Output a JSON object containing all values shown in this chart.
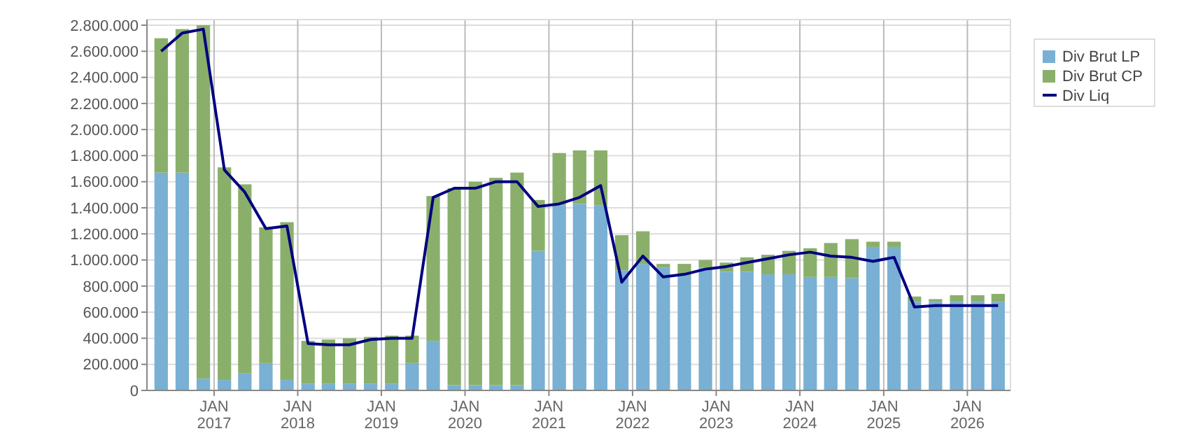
{
  "chart_data": {
    "type": "bar",
    "stacked": true,
    "grid": true,
    "legend": "right",
    "x": [
      "2016-05-15",
      "2016-08-15",
      "2016-11-15",
      "2017-02-15",
      "2017-05-15",
      "2017-08-15",
      "2017-11-15",
      "2018-02-15",
      "2018-05-15",
      "2018-08-15",
      "2018-11-15",
      "2019-02-15",
      "2019-05-15",
      "2019-08-15",
      "2019-11-15",
      "2020-02-15",
      "2020-05-15",
      "2020-08-15",
      "2020-11-15",
      "2021-02-15",
      "2021-05-15",
      "2021-08-15",
      "2021-11-15",
      "2022-02-15",
      "2022-05-15",
      "2022-08-15",
      "2022-11-15",
      "2023-02-15",
      "2023-05-15",
      "2023-08-15",
      "2023-11-15",
      "2024-02-15",
      "2024-05-15",
      "2024-08-15",
      "2024-11-15",
      "2025-02-15",
      "2025-05-15",
      "2025-08-15",
      "2025-11-15",
      "2026-02-15",
      "2026-05-15"
    ],
    "xlim": [
      "2016-03-14",
      "2026-07-08"
    ],
    "xticks": [
      {
        "value": "2017-01-01",
        "label": "JAN 2017"
      },
      {
        "value": "2018-01-01",
        "label": "JAN 2018"
      },
      {
        "value": "2019-01-01",
        "label": "JAN 2019"
      },
      {
        "value": "2020-01-01",
        "label": "JAN 2020"
      },
      {
        "value": "2021-01-01",
        "label": "JAN 2021"
      },
      {
        "value": "2022-01-01",
        "label": "JAN 2022"
      },
      {
        "value": "2023-01-01",
        "label": "JAN 2023"
      },
      {
        "value": "2024-01-01",
        "label": "JAN 2024"
      },
      {
        "value": "2025-01-01",
        "label": "JAN 2025"
      },
      {
        "value": "2026-01-01",
        "label": "JAN 2026"
      }
    ],
    "ylim": [
      0,
      2800000
    ],
    "yticks": [
      0,
      {
        "value": 200000,
        "label": "200.000"
      },
      {
        "value": 400000,
        "label": "400.000"
      },
      {
        "value": 600000,
        "label": "600.000"
      },
      {
        "value": 800000,
        "label": "800.000"
      },
      {
        "value": 1000000,
        "label": "1.000.000"
      },
      {
        "value": 1200000,
        "label": "1.200.000"
      },
      {
        "value": 1400000,
        "label": "1.400.000"
      },
      {
        "value": 1600000,
        "label": "1.600.000"
      },
      {
        "value": 1800000,
        "label": "1.800.000"
      },
      {
        "value": 2000000,
        "label": "2.000.000"
      },
      {
        "value": 2200000,
        "label": "2.200.000"
      },
      {
        "value": 2400000,
        "label": "2.400.000"
      },
      {
        "value": 2600000,
        "label": "2.600.000"
      },
      {
        "value": 2800000,
        "label": "2.800.000"
      }
    ],
    "series": [
      {
        "name": "Div Brut LP",
        "color": "#79b0d3",
        "values": [
          1670000,
          1670000,
          90000,
          80000,
          130000,
          210000,
          80000,
          50000,
          50000,
          50000,
          50000,
          50000,
          210000,
          380000,
          40000,
          40000,
          40000,
          40000,
          1070000,
          1420000,
          1430000,
          1420000,
          920000,
          970000,
          940000,
          880000,
          940000,
          910000,
          910000,
          890000,
          890000,
          870000,
          870000,
          860000,
          1100000,
          1100000,
          680000,
          680000,
          680000,
          680000,
          680000
        ]
      },
      {
        "name": "Div Brut CP",
        "color": "#8aaf6a",
        "values": [
          1030000,
          1100000,
          2710000,
          1630000,
          1450000,
          1040000,
          1210000,
          330000,
          340000,
          350000,
          360000,
          370000,
          210000,
          1110000,
          1510000,
          1560000,
          1590000,
          1630000,
          390000,
          400000,
          410000,
          420000,
          270000,
          250000,
          30000,
          90000,
          60000,
          70000,
          110000,
          150000,
          180000,
          220000,
          260000,
          300000,
          40000,
          40000,
          40000,
          20000,
          50000,
          50000,
          60000
        ]
      },
      {
        "name": "Div Liq",
        "type": "line",
        "color": "#000080",
        "values": [
          2600000,
          2740000,
          2770000,
          1690000,
          1520000,
          1240000,
          1260000,
          360000,
          350000,
          350000,
          390000,
          400000,
          400000,
          1480000,
          1550000,
          1550000,
          1600000,
          1600000,
          1410000,
          1430000,
          1480000,
          1570000,
          830000,
          1030000,
          870000,
          890000,
          930000,
          950000,
          980000,
          1010000,
          1040000,
          1060000,
          1030000,
          1020000,
          990000,
          1020000,
          640000,
          650000,
          650000,
          650000,
          650000
        ]
      }
    ]
  }
}
